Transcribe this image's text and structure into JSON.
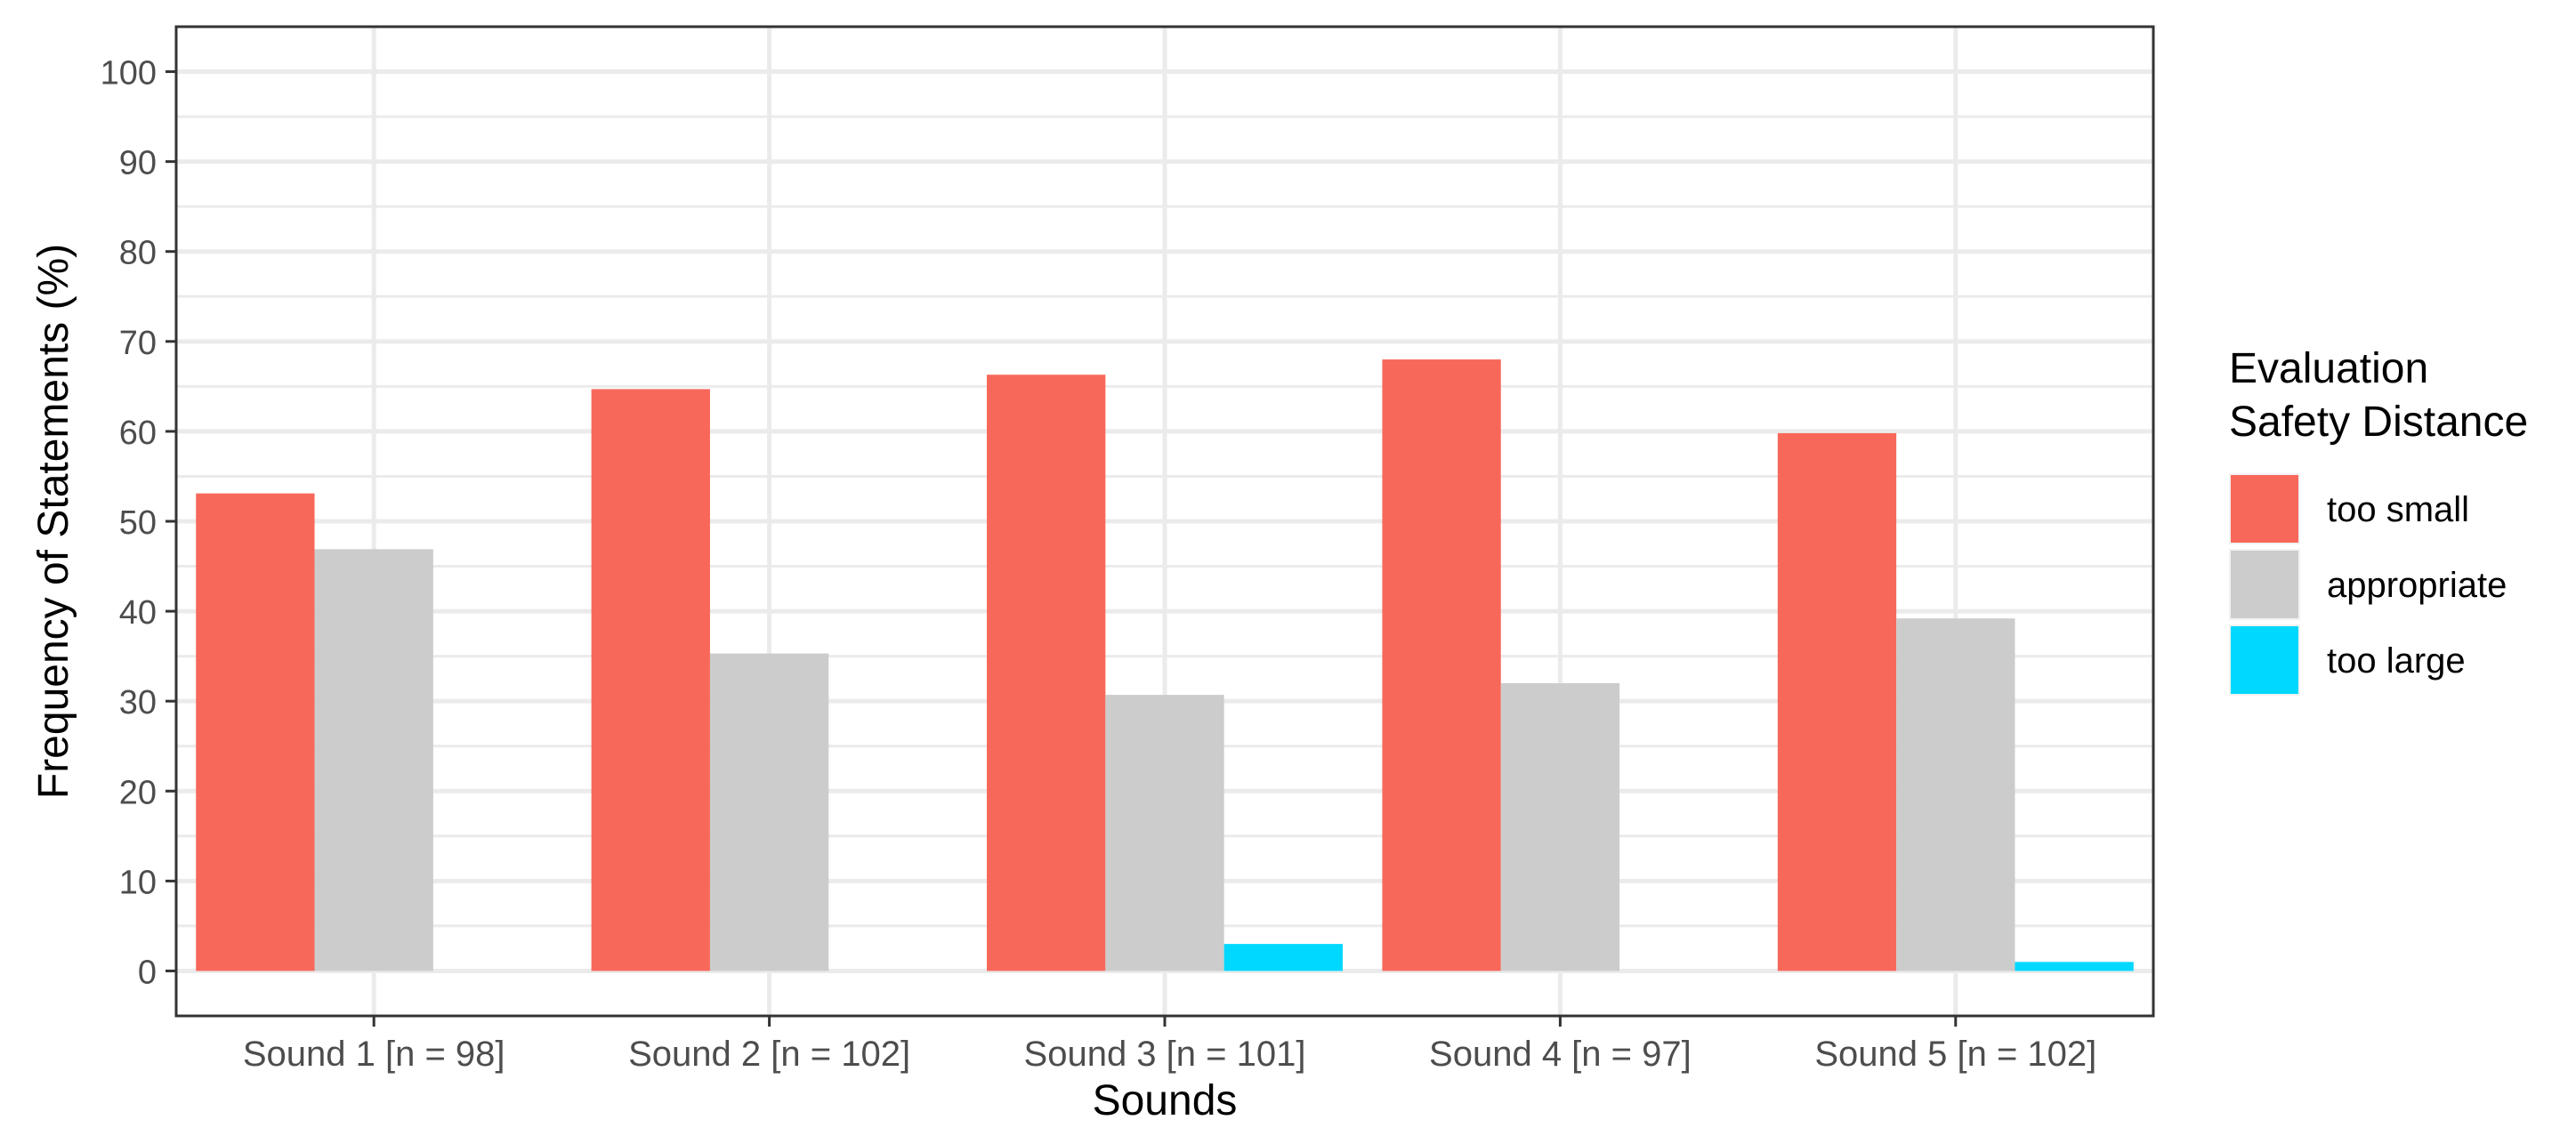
{
  "chart_data": {
    "type": "bar",
    "xlabel": "Sounds",
    "ylabel": "Frequency of Statements (%)",
    "ylim": [
      -5,
      105
    ],
    "yticks": [
      0,
      10,
      20,
      30,
      40,
      50,
      60,
      70,
      80,
      90,
      100
    ],
    "grid": true,
    "legend_position": "right",
    "legend_title": [
      "Evaluation",
      "Safety Distance"
    ],
    "categories": [
      "Sound 1 [n = 98]",
      "Sound 2 [n = 102]",
      "Sound 3 [n = 101]",
      "Sound 4 [n = 97]",
      "Sound 5 [n = 102]"
    ],
    "series": [
      {
        "name": "too small",
        "color": "#f8685a",
        "values": [
          53.1,
          64.7,
          66.3,
          68.0,
          59.8
        ]
      },
      {
        "name": "appropriate",
        "color": "#cccccc",
        "values": [
          46.9,
          35.3,
          30.7,
          32.0,
          39.2
        ]
      },
      {
        "name": "too large",
        "color": "#00d8ff",
        "values": [
          0,
          0,
          3.0,
          0,
          1.0
        ]
      }
    ]
  }
}
